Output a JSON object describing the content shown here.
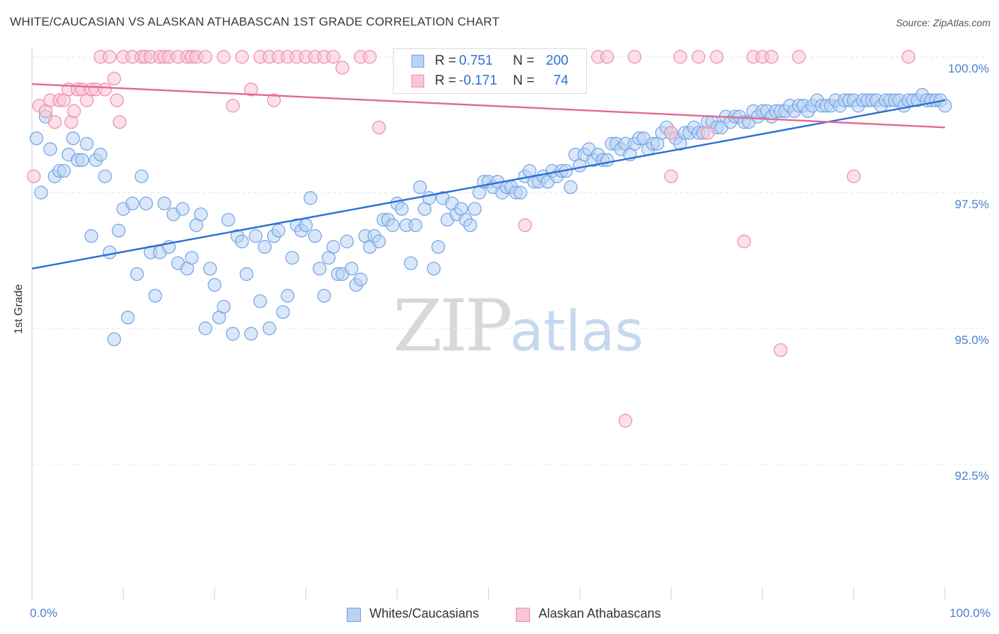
{
  "title": "WHITE/CAUCASIAN VS ALASKAN ATHABASCAN 1ST GRADE CORRELATION CHART",
  "source": "Source: ZipAtlas.com",
  "watermark": {
    "zip": "ZIP",
    "atlas": "atlas"
  },
  "legend": {
    "rows": [
      {
        "r_label": "R =",
        "r_value": "0.751",
        "n_label": "N =",
        "n_value": "200",
        "color": "#6fa3e8",
        "fill": "#b9d3f3"
      },
      {
        "r_label": "R =",
        "r_value": "-0.171",
        "n_label": "N =",
        "n_value": "74",
        "color": "#ef8aa8",
        "fill": "#f8c7d6"
      }
    ]
  },
  "bottom_legend": [
    {
      "label": "Whites/Caucasians",
      "color": "#6fa3e8",
      "fill": "#b9d3f3"
    },
    {
      "label": "Alaskan Athabascans",
      "color": "#ef8aa8",
      "fill": "#f8c7d6"
    }
  ],
  "chart_data": {
    "type": "scatter",
    "title": "WHITE/CAUCASIAN VS ALASKAN ATHABASCAN 1ST GRADE CORRELATION CHART",
    "xlabel": "",
    "ylabel": "1st Grade",
    "x_tick_labels": [
      "0.0%",
      "100.0%"
    ],
    "y_tick_labels": [
      "100.0%",
      "97.5%",
      "95.0%",
      "92.5%"
    ],
    "y_ticks": [
      100.0,
      97.5,
      95.0,
      92.5
    ],
    "xlim": [
      0,
      100
    ],
    "ylim": [
      89.8,
      100.2
    ],
    "grid": true,
    "series": [
      {
        "name": "Whites/Caucasians",
        "color": "#6fa3e8",
        "fill": "#b9d3f3",
        "line_color": "#2a70d2",
        "trend": {
          "x0": 0,
          "y0": 96.1,
          "x1": 100,
          "y1": 99.2
        },
        "points": [
          [
            0.5,
            98.5
          ],
          [
            1,
            97.5
          ],
          [
            1.5,
            98.9
          ],
          [
            2,
            98.3
          ],
          [
            2.5,
            97.8
          ],
          [
            3,
            97.9
          ],
          [
            3.5,
            97.9
          ],
          [
            4,
            98.2
          ],
          [
            4.5,
            98.5
          ],
          [
            5,
            98.1
          ],
          [
            5.5,
            98.1
          ],
          [
            6,
            98.4
          ],
          [
            6.5,
            96.7
          ],
          [
            7,
            98.1
          ],
          [
            7.5,
            98.2
          ],
          [
            8,
            97.8
          ],
          [
            8.5,
            96.4
          ],
          [
            9,
            94.8
          ],
          [
            9.5,
            96.8
          ],
          [
            10,
            97.2
          ],
          [
            10.5,
            95.2
          ],
          [
            11,
            97.3
          ],
          [
            11.5,
            96.0
          ],
          [
            12,
            97.8
          ],
          [
            12.5,
            97.3
          ],
          [
            13,
            96.4
          ],
          [
            13.5,
            95.6
          ],
          [
            14,
            96.4
          ],
          [
            14.5,
            97.3
          ],
          [
            15,
            96.5
          ],
          [
            15.5,
            97.1
          ],
          [
            16,
            96.2
          ],
          [
            16.5,
            97.2
          ],
          [
            17,
            96.1
          ],
          [
            17.5,
            96.3
          ],
          [
            18,
            96.9
          ],
          [
            18.5,
            97.1
          ],
          [
            19,
            95.0
          ],
          [
            19.5,
            96.1
          ],
          [
            20,
            95.8
          ],
          [
            20.5,
            95.2
          ],
          [
            21,
            95.4
          ],
          [
            21.5,
            97.0
          ],
          [
            22,
            94.9
          ],
          [
            22.5,
            96.7
          ],
          [
            23,
            96.6
          ],
          [
            23.5,
            96.0
          ],
          [
            24,
            94.9
          ],
          [
            24.5,
            96.7
          ],
          [
            25,
            95.5
          ],
          [
            25.5,
            96.5
          ],
          [
            26,
            95.0
          ],
          [
            26.5,
            96.7
          ],
          [
            27,
            96.8
          ],
          [
            27.5,
            95.3
          ],
          [
            28,
            95.6
          ],
          [
            28.5,
            96.3
          ],
          [
            29,
            96.9
          ],
          [
            29.5,
            96.8
          ],
          [
            30,
            96.9
          ],
          [
            30.5,
            97.4
          ],
          [
            31,
            96.7
          ],
          [
            31.5,
            96.1
          ],
          [
            32,
            95.6
          ],
          [
            32.5,
            96.3
          ],
          [
            33,
            96.5
          ],
          [
            33.5,
            96.0
          ],
          [
            34,
            96.0
          ],
          [
            34.5,
            96.6
          ],
          [
            35,
            96.1
          ],
          [
            35.5,
            95.8
          ],
          [
            36,
            95.9
          ],
          [
            36.5,
            96.7
          ],
          [
            37,
            96.5
          ],
          [
            37.5,
            96.7
          ],
          [
            38,
            96.6
          ],
          [
            38.5,
            97.0
          ],
          [
            39,
            97.0
          ],
          [
            39.5,
            96.9
          ],
          [
            40,
            97.3
          ],
          [
            40.5,
            97.2
          ],
          [
            41,
            96.9
          ],
          [
            41.5,
            96.2
          ],
          [
            42,
            96.9
          ],
          [
            42.5,
            97.6
          ],
          [
            43,
            97.2
          ],
          [
            43.5,
            97.4
          ],
          [
            44,
            96.1
          ],
          [
            44.5,
            96.5
          ],
          [
            45,
            97.4
          ],
          [
            45.5,
            97.0
          ],
          [
            46,
            97.3
          ],
          [
            46.5,
            97.1
          ],
          [
            47,
            97.2
          ],
          [
            47.5,
            97.0
          ],
          [
            48,
            96.9
          ],
          [
            48.5,
            97.2
          ],
          [
            49,
            97.5
          ],
          [
            49.5,
            97.7
          ],
          [
            50,
            97.7
          ],
          [
            50.5,
            97.6
          ],
          [
            51,
            97.7
          ],
          [
            51.5,
            97.5
          ],
          [
            52,
            97.6
          ],
          [
            52.5,
            97.6
          ],
          [
            53,
            97.5
          ],
          [
            53.5,
            97.5
          ],
          [
            54,
            97.8
          ],
          [
            54.5,
            97.9
          ],
          [
            55,
            97.7
          ],
          [
            55.5,
            97.7
          ],
          [
            56,
            97.8
          ],
          [
            56.5,
            97.7
          ],
          [
            57,
            97.9
          ],
          [
            57.5,
            97.8
          ],
          [
            58,
            97.9
          ],
          [
            58.5,
            97.9
          ],
          [
            59,
            97.6
          ],
          [
            59.5,
            98.2
          ],
          [
            60,
            98.0
          ],
          [
            60.5,
            98.2
          ],
          [
            61,
            98.3
          ],
          [
            61.5,
            98.1
          ],
          [
            62,
            98.2
          ],
          [
            62.5,
            98.1
          ],
          [
            63,
            98.1
          ],
          [
            63.5,
            98.4
          ],
          [
            64,
            98.4
          ],
          [
            64.5,
            98.3
          ],
          [
            65,
            98.4
          ],
          [
            65.5,
            98.2
          ],
          [
            66,
            98.4
          ],
          [
            66.5,
            98.5
          ],
          [
            67,
            98.5
          ],
          [
            67.5,
            98.3
          ],
          [
            68,
            98.4
          ],
          [
            68.5,
            98.4
          ],
          [
            69,
            98.6
          ],
          [
            69.5,
            98.7
          ],
          [
            70,
            98.6
          ],
          [
            70.5,
            98.5
          ],
          [
            71,
            98.4
          ],
          [
            71.5,
            98.6
          ],
          [
            72,
            98.6
          ],
          [
            72.5,
            98.7
          ],
          [
            73,
            98.6
          ],
          [
            73.5,
            98.6
          ],
          [
            74,
            98.8
          ],
          [
            74.5,
            98.8
          ],
          [
            75,
            98.7
          ],
          [
            75.5,
            98.7
          ],
          [
            76,
            98.9
          ],
          [
            76.5,
            98.8
          ],
          [
            77,
            98.9
          ],
          [
            77.5,
            98.9
          ],
          [
            78,
            98.8
          ],
          [
            78.5,
            98.8
          ],
          [
            79,
            99.0
          ],
          [
            79.5,
            98.9
          ],
          [
            80,
            99.0
          ],
          [
            80.5,
            99.0
          ],
          [
            81,
            98.9
          ],
          [
            81.5,
            99.0
          ],
          [
            82,
            99.0
          ],
          [
            82.5,
            99.0
          ],
          [
            83,
            99.1
          ],
          [
            83.5,
            99.0
          ],
          [
            84,
            99.1
          ],
          [
            84.5,
            99.1
          ],
          [
            85,
            99.0
          ],
          [
            85.5,
            99.1
          ],
          [
            86,
            99.2
          ],
          [
            86.5,
            99.1
          ],
          [
            87,
            99.1
          ],
          [
            87.5,
            99.1
          ],
          [
            88,
            99.2
          ],
          [
            88.5,
            99.1
          ],
          [
            89,
            99.2
          ],
          [
            89.5,
            99.2
          ],
          [
            90,
            99.2
          ],
          [
            90.5,
            99.1
          ],
          [
            91,
            99.2
          ],
          [
            91.5,
            99.2
          ],
          [
            92,
            99.2
          ],
          [
            92.5,
            99.2
          ],
          [
            93,
            99.1
          ],
          [
            93.5,
            99.2
          ],
          [
            94,
            99.2
          ],
          [
            94.5,
            99.2
          ],
          [
            95,
            99.2
          ],
          [
            95.5,
            99.1
          ],
          [
            96,
            99.2
          ],
          [
            96.5,
            99.2
          ],
          [
            97,
            99.2
          ],
          [
            97.5,
            99.3
          ],
          [
            98,
            99.2
          ],
          [
            98.5,
            99.2
          ],
          [
            99,
            99.2
          ],
          [
            99.5,
            99.2
          ],
          [
            100,
            99.1
          ]
        ]
      },
      {
        "name": "Alaskan Athabascans",
        "color": "#ef8aa8",
        "fill": "#f8c7d6",
        "line_color": "#e26a90",
        "trend": {
          "x0": 0,
          "y0": 99.5,
          "x1": 100,
          "y1": 98.7
        },
        "points": [
          [
            0.2,
            97.8
          ],
          [
            0.8,
            99.1
          ],
          [
            1.5,
            99.0
          ],
          [
            2,
            99.2
          ],
          [
            2.5,
            98.8
          ],
          [
            3,
            99.2
          ],
          [
            3.5,
            99.2
          ],
          [
            4,
            99.4
          ],
          [
            4.3,
            98.8
          ],
          [
            4.6,
            99.0
          ],
          [
            5,
            99.4
          ],
          [
            5.5,
            99.4
          ],
          [
            6,
            99.2
          ],
          [
            6.5,
            99.4
          ],
          [
            7,
            99.4
          ],
          [
            7.5,
            100.0
          ],
          [
            8,
            99.4
          ],
          [
            8.5,
            100.0
          ],
          [
            9,
            99.6
          ],
          [
            9.3,
            99.2
          ],
          [
            9.6,
            98.8
          ],
          [
            10,
            100.0
          ],
          [
            11,
            100.0
          ],
          [
            12,
            100.0
          ],
          [
            12.4,
            100.0
          ],
          [
            13,
            100.0
          ],
          [
            14,
            100.0
          ],
          [
            14.5,
            100.0
          ],
          [
            15,
            100.0
          ],
          [
            16,
            100.0
          ],
          [
            17,
            100.0
          ],
          [
            17.5,
            100.0
          ],
          [
            18,
            100.0
          ],
          [
            19,
            100.0
          ],
          [
            21,
            100.0
          ],
          [
            22,
            99.1
          ],
          [
            23,
            100.0
          ],
          [
            24,
            99.4
          ],
          [
            25,
            100.0
          ],
          [
            26,
            100.0
          ],
          [
            26.5,
            99.2
          ],
          [
            27,
            100.0
          ],
          [
            28,
            100.0
          ],
          [
            29,
            100.0
          ],
          [
            30,
            100.0
          ],
          [
            31,
            100.0
          ],
          [
            32,
            100.0
          ],
          [
            33,
            100.0
          ],
          [
            34,
            99.8
          ],
          [
            36,
            100.0
          ],
          [
            37,
            100.0
          ],
          [
            38,
            98.7
          ],
          [
            42,
            100.0
          ],
          [
            53,
            100.0
          ],
          [
            54,
            96.9
          ],
          [
            55,
            100.0
          ],
          [
            62,
            100.0
          ],
          [
            63,
            100.0
          ],
          [
            65,
            93.3
          ],
          [
            66,
            100.0
          ],
          [
            70,
            98.6
          ],
          [
            70,
            97.8
          ],
          [
            71,
            100.0
          ],
          [
            73,
            100.0
          ],
          [
            74,
            98.6
          ],
          [
            75,
            100.0
          ],
          [
            78,
            96.6
          ],
          [
            79,
            100.0
          ],
          [
            80,
            100.0
          ],
          [
            81,
            100.0
          ],
          [
            82,
            94.6
          ],
          [
            84,
            100.0
          ],
          [
            90,
            97.8
          ],
          [
            96,
            100.0
          ]
        ]
      }
    ]
  }
}
